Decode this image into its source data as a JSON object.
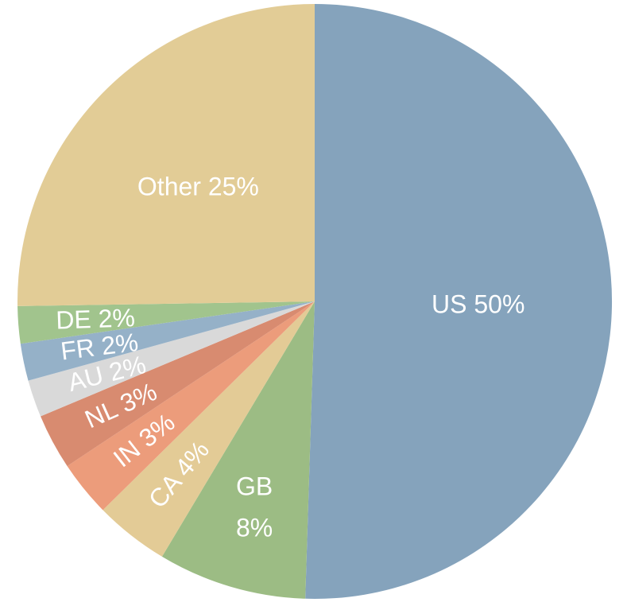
{
  "chart_data": {
    "type": "pie",
    "title": "",
    "start_angle_deg": 0,
    "direction": "clockwise",
    "slices": [
      {
        "name": "US",
        "value": 50,
        "label_lines": [
          "US 50%"
        ],
        "color": "#85A3BC",
        "label_rotate": 0
      },
      {
        "name": "GB",
        "value": 8,
        "label_lines": [
          "GB",
          "8%"
        ],
        "color": "#9CBC84",
        "label_rotate": 0
      },
      {
        "name": "CA",
        "value": 4,
        "label_lines": [
          "CA 4%"
        ],
        "color": "#E3CB96",
        "label_rotate": -50
      },
      {
        "name": "IN",
        "value": 3,
        "label_lines": [
          "IN 3%"
        ],
        "color": "#EC9C7B",
        "label_rotate": -38
      },
      {
        "name": "NL",
        "value": 3,
        "label_lines": [
          "NL 3%"
        ],
        "color": "#D88B70",
        "label_rotate": -24
      },
      {
        "name": "AU",
        "value": 2,
        "label_lines": [
          "AU 2%"
        ],
        "color": "#D9D9D9",
        "label_rotate": -14
      },
      {
        "name": "FR",
        "value": 2,
        "label_lines": [
          "FR 2%"
        ],
        "color": "#95B1C8",
        "label_rotate": -7
      },
      {
        "name": "DE",
        "value": 2,
        "label_lines": [
          "DE 2%"
        ],
        "color": "#A1C48D",
        "label_rotate": -2
      },
      {
        "name": "Other",
        "value": 25,
        "label_lines": [
          "Other 25%"
        ],
        "color": "#E2CC96",
        "label_rotate": 0
      }
    ]
  }
}
